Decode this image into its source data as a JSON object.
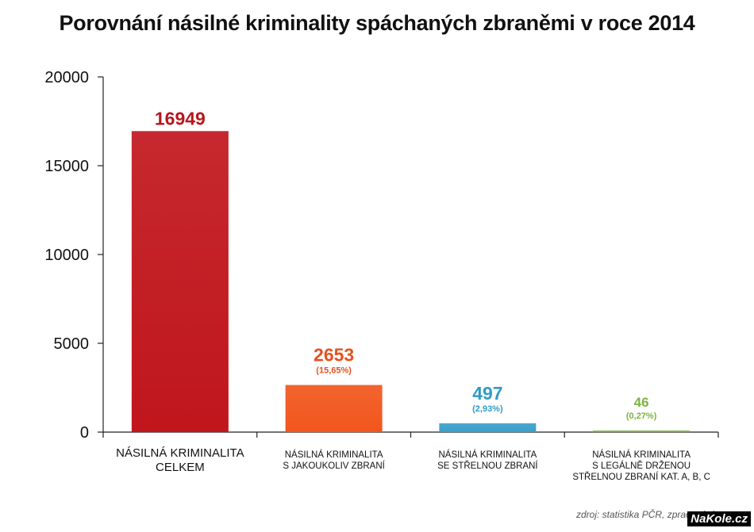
{
  "chart_data": {
    "type": "bar",
    "title": "Porovnání násilné kriminality spáchaných zbraněmi v roce 2014",
    "xlabel": "",
    "ylabel": "",
    "ylim": [
      0,
      20000
    ],
    "yticks": [
      "0",
      "5000",
      "10000",
      "15000",
      "20000"
    ],
    "grid": false,
    "categories": [
      [
        "NÁSILNÁ KRIMINALITA",
        "CELKEM"
      ],
      [
        "NÁSILNÁ KRIMINALITA",
        "S JAKOUKOLIV ZBRANÍ"
      ],
      [
        "NÁSILNÁ KRIMINALITA",
        "SE STŘELNOU ZBRANÍ"
      ],
      [
        "NÁSILNÁ KRIMINALITA",
        "S LEGÁLNĚ DRŽENOU",
        "STŘELNOU ZBRANÍ KAT. A, B, C"
      ]
    ],
    "values": [
      16949,
      2653,
      497,
      46
    ],
    "value_labels": [
      "16949",
      "2653",
      "497",
      "46"
    ],
    "percent_labels": [
      "",
      "(15,65%)",
      "(2,93%)",
      "(0,27%)"
    ],
    "colors": [
      "#c0161c",
      "#f2561d",
      "#3aa0c8",
      "#7cb342"
    ],
    "label_colors": [
      "#b5171d",
      "#e8501e",
      "#2f9bc8",
      "#7cb342"
    ]
  },
  "source": "zdroj: statistika PČR, zpracování",
  "watermark": "NaKole.cz"
}
